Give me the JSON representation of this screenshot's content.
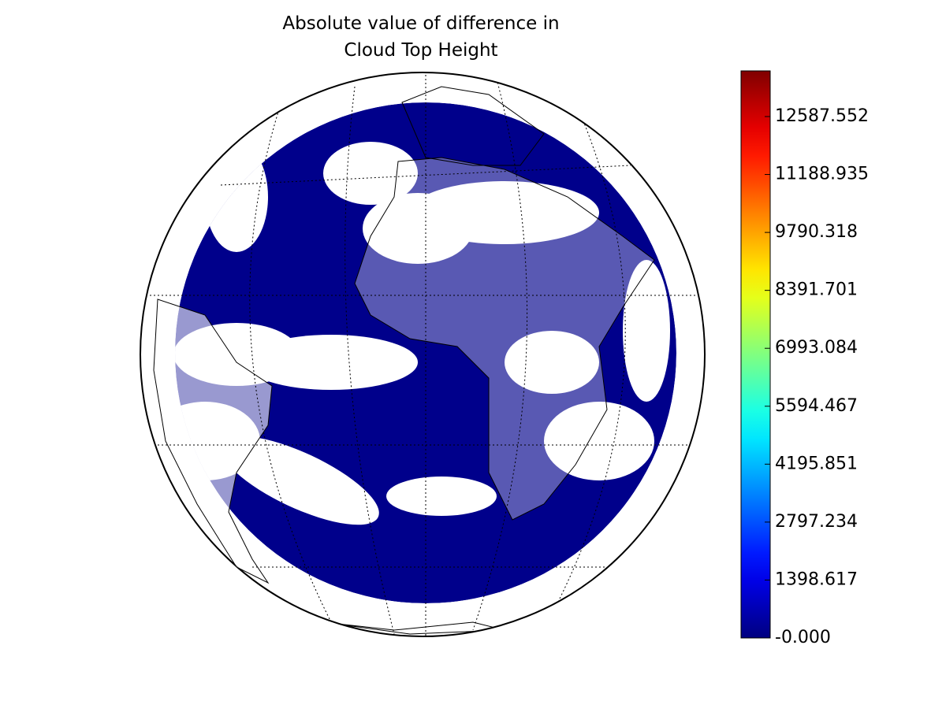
{
  "title": [
    "Absolute value of difference in",
    "Cloud Top Height"
  ],
  "colorbar": {
    "colormap": "jet",
    "lim": [
      0,
      13690
    ],
    "ticks": [
      {
        "value": 0,
        "label": "-0.000"
      },
      {
        "value": 1398.617,
        "label": "1398.617"
      },
      {
        "value": 2797.234,
        "label": "2797.234"
      },
      {
        "value": 4195.851,
        "label": "4195.851"
      },
      {
        "value": 5594.467,
        "label": "5594.467"
      },
      {
        "value": 6993.084,
        "label": "6993.084"
      },
      {
        "value": 8391.701,
        "label": "8391.701"
      },
      {
        "value": 9790.318,
        "label": "9790.318"
      },
      {
        "value": 11188.935,
        "label": "11188.935"
      },
      {
        "value": 12587.552,
        "label": "12587.552"
      }
    ]
  }
}
